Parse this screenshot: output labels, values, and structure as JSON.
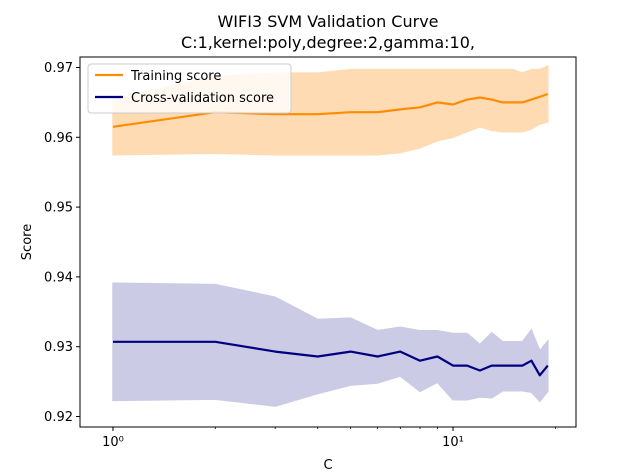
{
  "chart_data": {
    "type": "line",
    "title_line1": "WIFI3 SVM Validation Curve",
    "title_line2": "C:1,kernel:poly,degree:2,gamma:10,",
    "xlabel": "C",
    "ylabel": "Score",
    "xscale": "log",
    "xlim": [
      0.8,
      23
    ],
    "ylim": [
      0.9185,
      0.9715
    ],
    "yticks": [
      0.92,
      0.93,
      0.94,
      0.95,
      0.96,
      0.97
    ],
    "ytick_labels": [
      "0.92",
      "0.93",
      "0.94",
      "0.95",
      "0.96",
      "0.97"
    ],
    "xticks": [
      1,
      10
    ],
    "xtick_labels": [
      "10⁰",
      "10¹"
    ],
    "legend_position": "top-left",
    "grid": false,
    "x": [
      1,
      2,
      3,
      4,
      5,
      6,
      7,
      8,
      9,
      10,
      11,
      12,
      13,
      14,
      15,
      16,
      17,
      18,
      19
    ],
    "series": [
      {
        "name": "Training score",
        "color": "#ff8c00",
        "band_color": "#ffdbb3",
        "mean": [
          0.9615,
          0.9636,
          0.9633,
          0.9633,
          0.9636,
          0.9636,
          0.964,
          0.9643,
          0.965,
          0.9647,
          0.9654,
          0.9657,
          0.9654,
          0.965,
          0.965,
          0.965,
          0.9654,
          0.9658,
          0.9662
        ],
        "upper": [
          0.9655,
          0.9687,
          0.9692,
          0.9692,
          0.9697,
          0.9697,
          0.9697,
          0.9697,
          0.9697,
          0.9697,
          0.9697,
          0.9697,
          0.9697,
          0.9697,
          0.9697,
          0.9692,
          0.9697,
          0.9697,
          0.9702
        ],
        "lower": [
          0.9575,
          0.9577,
          0.9575,
          0.9575,
          0.9575,
          0.9575,
          0.9578,
          0.9585,
          0.9595,
          0.96,
          0.9608,
          0.9615,
          0.961,
          0.9608,
          0.9608,
          0.9608,
          0.9612,
          0.9619,
          0.9622
        ]
      },
      {
        "name": "Cross-validation score",
        "color": "#000080",
        "band_color": "#cbcbe5",
        "mean": [
          0.9307,
          0.9307,
          0.9293,
          0.9286,
          0.9293,
          0.9286,
          0.9293,
          0.928,
          0.9286,
          0.9273,
          0.9273,
          0.9266,
          0.9273,
          0.9273,
          0.9273,
          0.9273,
          0.928,
          0.9259,
          0.9273
        ],
        "upper": [
          0.9391,
          0.9389,
          0.9371,
          0.9339,
          0.9341,
          0.9323,
          0.9328,
          0.9323,
          0.9323,
          0.9319,
          0.9319,
          0.9303,
          0.932,
          0.9307,
          0.9307,
          0.9307,
          0.9324,
          0.9294,
          0.9308
        ],
        "lower": [
          0.9223,
          0.9225,
          0.9215,
          0.9233,
          0.9245,
          0.9248,
          0.9258,
          0.9236,
          0.9249,
          0.9224,
          0.9224,
          0.9228,
          0.9227,
          0.9237,
          0.9237,
          0.9237,
          0.9235,
          0.9222,
          0.9236
        ]
      }
    ]
  }
}
